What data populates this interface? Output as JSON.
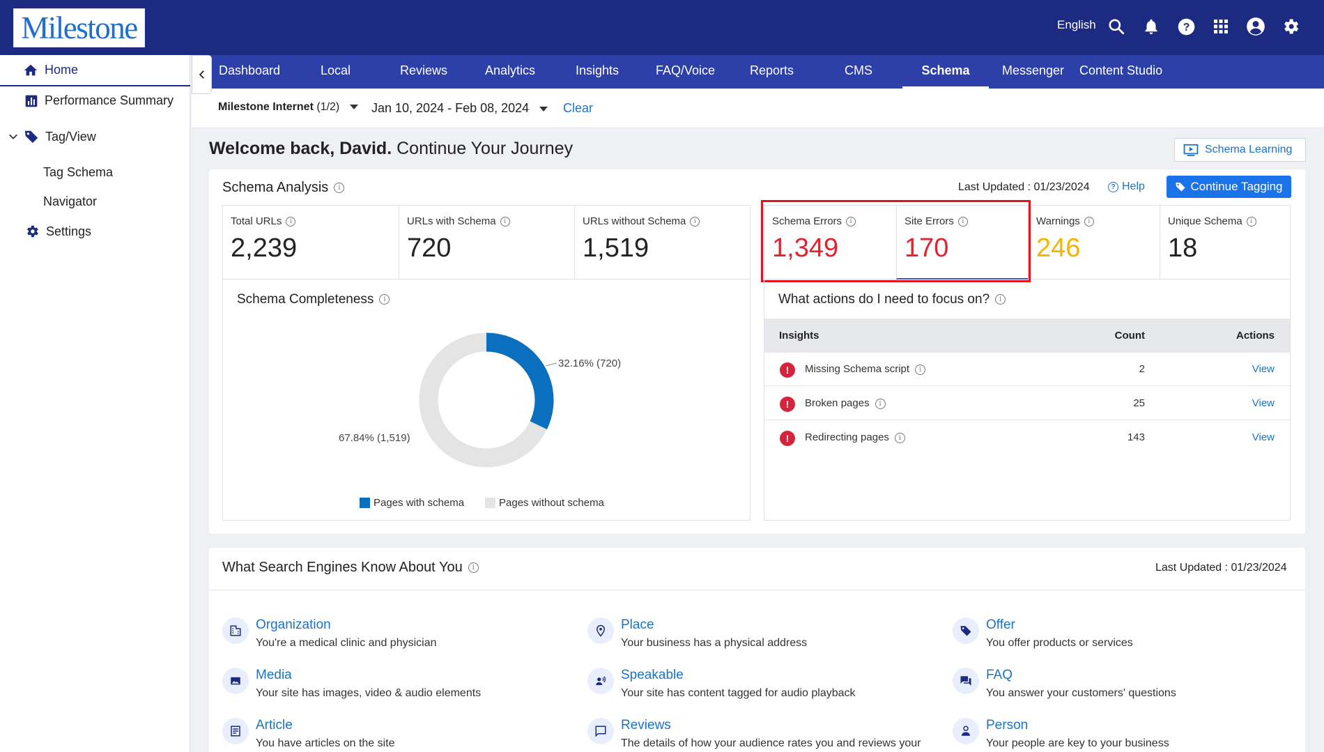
{
  "header": {
    "logo_text": "Milestone",
    "language": "English",
    "icons": [
      "search-icon",
      "bell-icon",
      "help-icon",
      "apps-grid-icon",
      "account-icon",
      "settings-gear-icon"
    ]
  },
  "sidebar": {
    "items": [
      {
        "label": "Home",
        "icon": "home-icon"
      },
      {
        "label": "Performance Summary",
        "icon": "bar-chart-icon"
      },
      {
        "label": "Tag/View",
        "icon": "tag-icon"
      },
      {
        "label": "Tag Schema"
      },
      {
        "label": "Navigator"
      },
      {
        "label": "Settings",
        "icon": "gear-icon"
      }
    ]
  },
  "nav": {
    "tabs": [
      "Dashboard",
      "Local",
      "Reviews",
      "Analytics",
      "Insights",
      "FAQ/Voice",
      "Reports",
      "CMS",
      "Schema",
      "Messenger",
      "Content Studio"
    ],
    "active": "Schema"
  },
  "filters": {
    "account": "Milestone Internet",
    "account_count": "(1/2)",
    "date_range": "Jan 10, 2024 - Feb 08, 2024",
    "clear": "Clear"
  },
  "welcome": {
    "greeting": "Welcome back, David.",
    "subtitle": "Continue Your Journey",
    "learning_button": "Schema Learning"
  },
  "schema_analysis": {
    "title": "Schema Analysis",
    "last_updated": "Last Updated : 01/23/2024",
    "help": "Help",
    "continue_button": "Continue Tagging",
    "metrics": [
      {
        "label": "Total URLs",
        "value": "2,239",
        "color": "#222222"
      },
      {
        "label": "URLs with Schema",
        "value": "720",
        "color": "#222222"
      },
      {
        "label": "URLs without Schema",
        "value": "1,519",
        "color": "#222222"
      },
      {
        "label": "Schema Errors",
        "value": "1,349",
        "color": "#e0242f"
      },
      {
        "label": "Site Errors",
        "value": "170",
        "color": "#e0242f"
      },
      {
        "label": "Warnings",
        "value": "246",
        "color": "#f5b400"
      },
      {
        "label": "Unique Schema",
        "value": "18",
        "color": "#222222"
      }
    ],
    "completeness": {
      "title": "Schema Completeness",
      "with_label": "32.16% (720)",
      "without_label": "67.84% (1,519)",
      "with_fraction": 0.3216,
      "legend_with": "Pages with schema",
      "legend_without": "Pages without schema",
      "color_with": "#0a6fbf",
      "color_without": "#e4e4e4"
    },
    "focus": {
      "title": "What actions do I need to focus on?",
      "col_insights": "Insights",
      "col_count": "Count",
      "col_actions": "Actions",
      "rows": [
        {
          "label": "Missing Schema script",
          "count": "2",
          "action": "View"
        },
        {
          "label": "Broken pages",
          "count": "25",
          "action": "View"
        },
        {
          "label": "Redirecting pages",
          "count": "143",
          "action": "View"
        }
      ]
    }
  },
  "search_engines": {
    "title": "What Search Engines Know About You",
    "last_updated": "Last Updated : 01/23/2024",
    "cards": [
      {
        "title": "Organization",
        "desc": "You're a medical clinic and physician",
        "icon": "building-icon"
      },
      {
        "title": "Place",
        "desc": "Your business has a physical address",
        "icon": "location-pin-icon"
      },
      {
        "title": "Offer",
        "desc": "You offer products or services",
        "icon": "price-tag-icon"
      },
      {
        "title": "Media",
        "desc": "Your site has images, video & audio elements",
        "icon": "image-icon"
      },
      {
        "title": "Speakable",
        "desc": "Your site has content tagged for audio playback",
        "icon": "speaker-voice-icon"
      },
      {
        "title": "FAQ",
        "desc": "You answer your customers' questions",
        "icon": "chat-bubbles-icon"
      },
      {
        "title": "Article",
        "desc": "You have articles on the site",
        "icon": "article-icon"
      },
      {
        "title": "Reviews",
        "desc": "The details of how your audience rates you and reviews your",
        "icon": "review-bubble-icon"
      },
      {
        "title": "Person",
        "desc": "Your people are key to your business",
        "icon": "person-icon"
      }
    ]
  }
}
